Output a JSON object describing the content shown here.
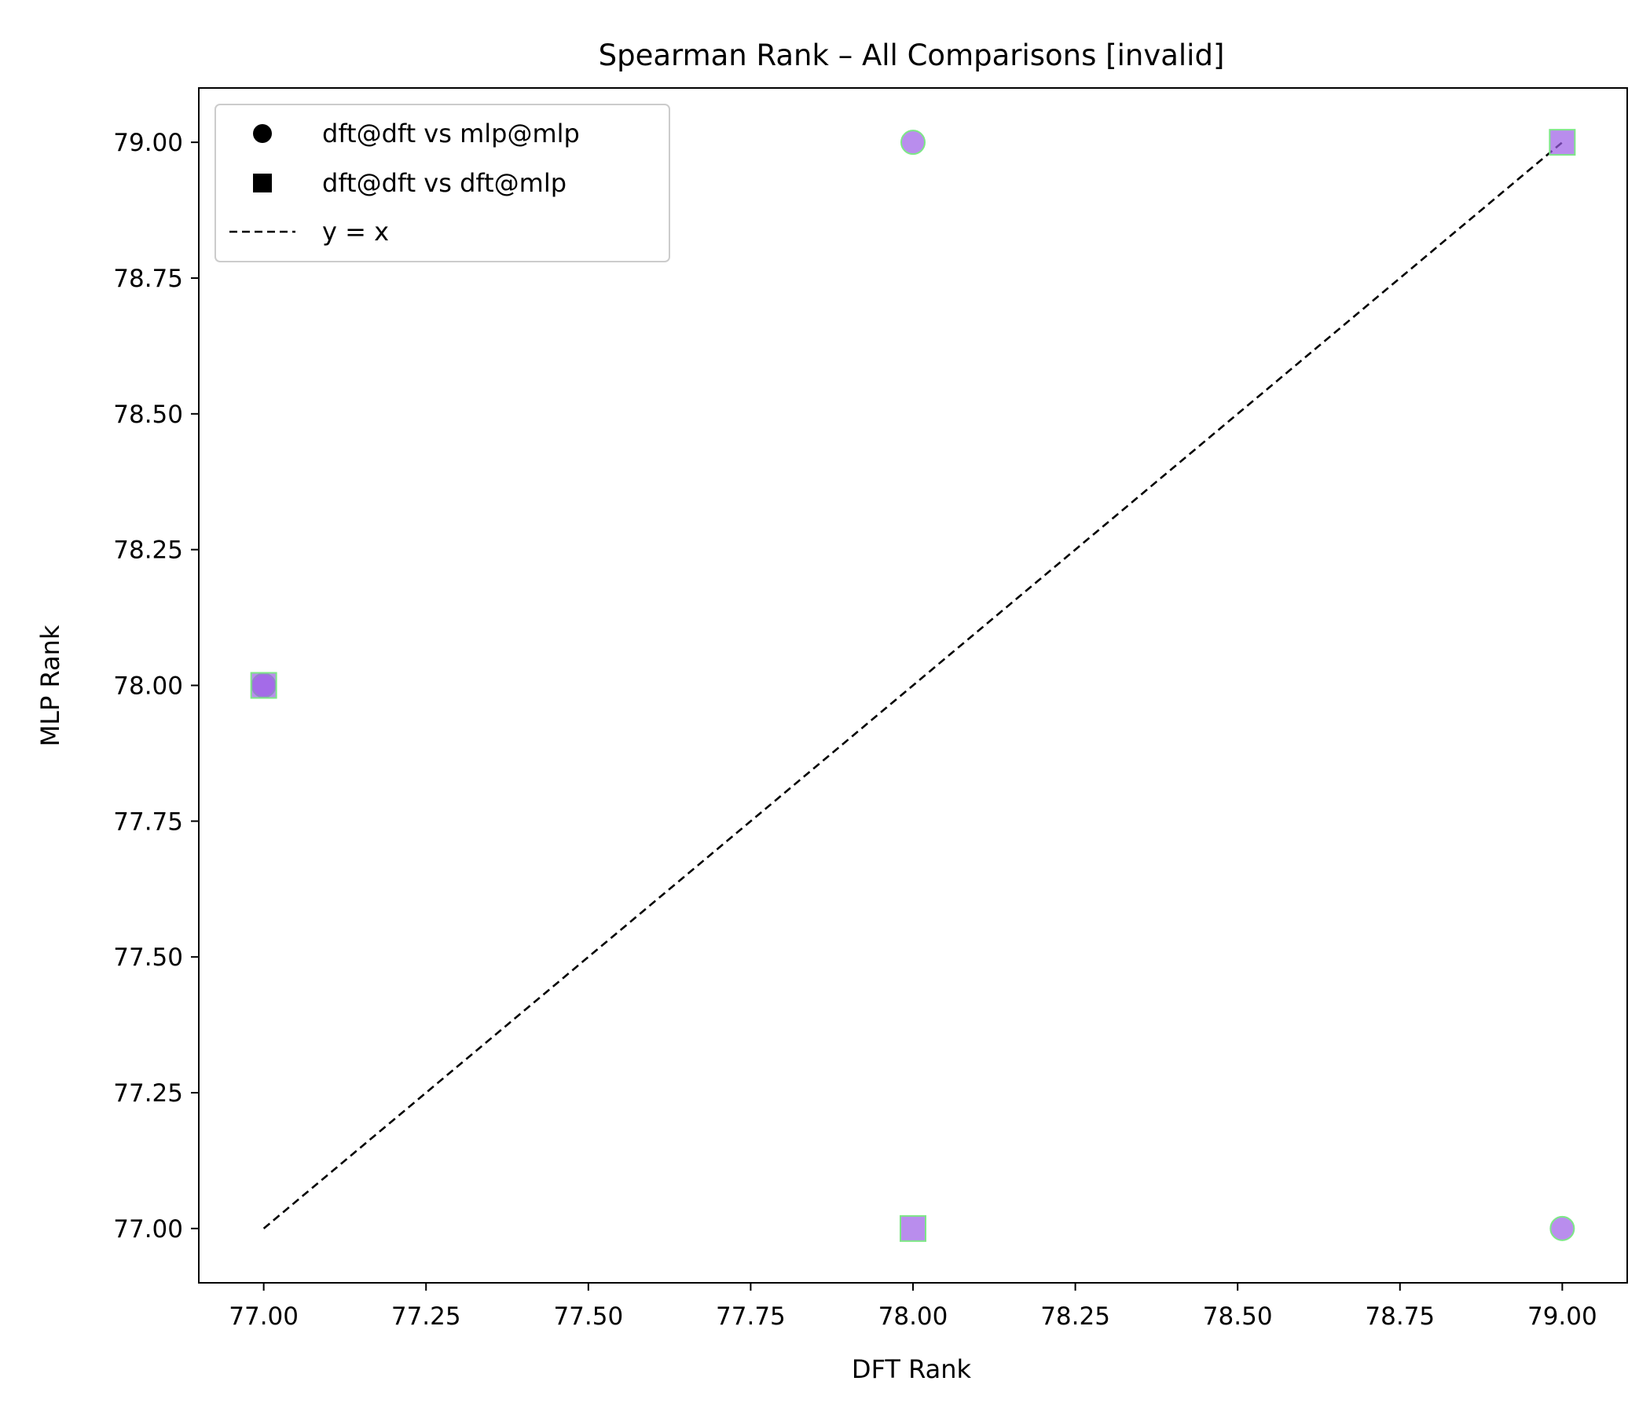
{
  "chart_data": {
    "type": "scatter",
    "title": "Spearman Rank – All Comparisons [invalid]",
    "xlabel": "DFT Rank",
    "ylabel": "MLP Rank",
    "xlim": [
      76.9,
      79.1
    ],
    "ylim": [
      76.9,
      79.1
    ],
    "xticks": [
      77.0,
      77.25,
      77.5,
      77.75,
      78.0,
      78.25,
      78.5,
      78.75,
      79.0
    ],
    "yticks": [
      77.0,
      77.25,
      77.5,
      77.75,
      78.0,
      78.25,
      78.5,
      78.75,
      79.0
    ],
    "tick_format_decimals": 2,
    "grid": false,
    "legend_position": "top-left",
    "marker_fill": "#9b5de5",
    "marker_fill_opacity": 0.7,
    "marker_edge": "#7ee787",
    "series": [
      {
        "name": "dft@dft vs mlp@mlp",
        "marker": "circle",
        "points": [
          {
            "x": 77,
            "y": 78
          },
          {
            "x": 78,
            "y": 79
          },
          {
            "x": 79,
            "y": 77
          }
        ]
      },
      {
        "name": "dft@dft vs dft@mlp",
        "marker": "square",
        "points": [
          {
            "x": 77,
            "y": 78
          },
          {
            "x": 78,
            "y": 77
          },
          {
            "x": 79,
            "y": 79
          }
        ]
      }
    ],
    "reference_line": {
      "name": "y = x",
      "style": "dashed",
      "color": "#000000",
      "x": [
        77,
        79
      ],
      "y": [
        77,
        79
      ]
    }
  }
}
